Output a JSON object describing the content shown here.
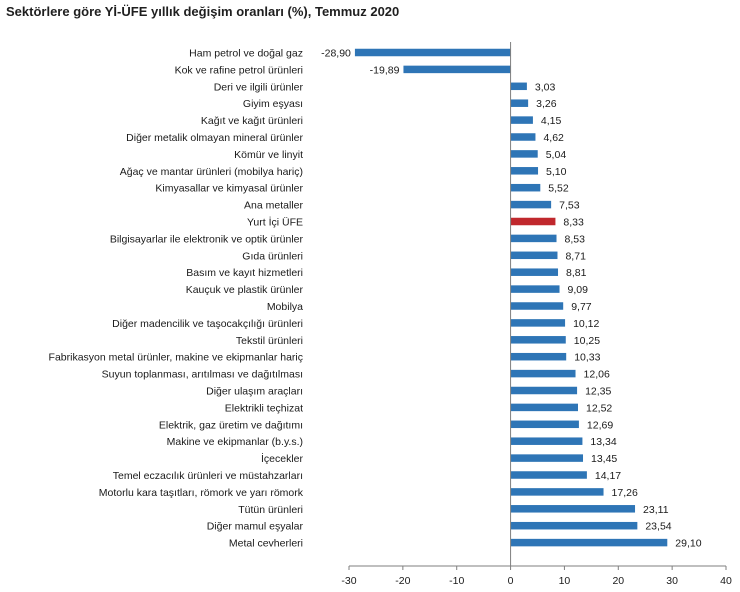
{
  "chart_data": {
    "type": "bar",
    "orientation": "horizontal",
    "title": "Sektörlere göre Yİ-ÜFE yıllık değişim oranları (%), Temmuz 2020",
    "xlabel": "",
    "ylabel": "",
    "xlim": [
      -30,
      40
    ],
    "xticks": [
      -30,
      -20,
      -10,
      0,
      10,
      20,
      30,
      40
    ],
    "categories": [
      "Ham petrol ve doğal gaz",
      "Kok ve rafine petrol ürünleri",
      "Deri ve ilgili ürünler",
      "Giyim eşyası",
      "Kağıt ve kağıt ürünleri",
      "Diğer metalik olmayan mineral ürünler",
      "Kömür ve linyit",
      "Ağaç ve mantar ürünleri (mobilya hariç)",
      "Kimyasallar ve kimyasal ürünler",
      "Ana metaller",
      "Yurt İçi ÜFE",
      "Bilgisayarlar ile elektronik ve optik ürünler",
      "Gıda ürünleri",
      "Basım ve kayıt hizmetleri",
      "Kauçuk ve plastik ürünler",
      "Mobilya",
      "Diğer madencilik ve taşocakçılığı ürünleri",
      "Tekstil ürünleri",
      "Fabrikasyon metal ürünler, makine ve ekipmanlar hariç",
      "Suyun toplanması, arıtılması ve dağıtılması",
      "Diğer ulaşım araçları",
      "Elektrikli teçhizat",
      "Elektrik, gaz üretim ve dağıtımı",
      "Makine ve ekipmanlar (b.y.s.)",
      "İçecekler",
      "Temel eczacılık ürünleri ve müstahzarları",
      "Motorlu kara taşıtları, römork ve yarı römork",
      "Tütün ürünleri",
      "Diğer mamul eşyalar",
      "Metal cevherleri"
    ],
    "values": [
      -28.9,
      -19.89,
      3.03,
      3.26,
      4.15,
      4.62,
      5.04,
      5.1,
      5.52,
      7.53,
      8.33,
      8.53,
      8.71,
      8.81,
      9.09,
      9.77,
      10.12,
      10.25,
      10.33,
      12.06,
      12.35,
      12.52,
      12.69,
      13.34,
      13.45,
      14.17,
      17.26,
      23.11,
      23.54,
      29.1
    ],
    "value_labels": [
      "-28,90",
      "-19,89",
      "3,03",
      "3,26",
      "4,15",
      "4,62",
      "5,04",
      "5,10",
      "5,52",
      "7,53",
      "8,33",
      "8,53",
      "8,71",
      "8,81",
      "9,09",
      "9,77",
      "10,12",
      "10,25",
      "10,33",
      "12,06",
      "12,35",
      "12,52",
      "12,69",
      "13,34",
      "13,45",
      "14,17",
      "17,26",
      "23,11",
      "23,54",
      "29,10"
    ],
    "highlight_category": "Yurt İçi ÜFE",
    "colors": {
      "bar": "#2e75b6",
      "highlight": "#c0282d",
      "axis": "#7f7f7f",
      "text": "#1a1a1a"
    },
    "grid": false,
    "legend": "none"
  }
}
